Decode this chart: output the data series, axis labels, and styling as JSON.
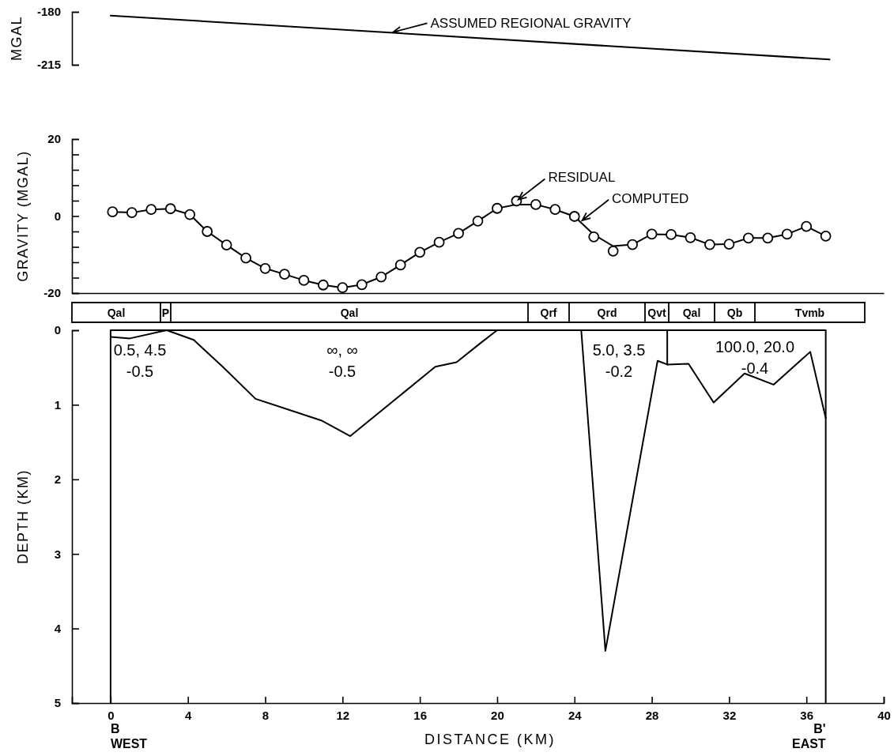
{
  "chart_data": [
    {
      "type": "line",
      "ylabel": "MGAL",
      "xlim": [
        -2,
        40
      ],
      "ylim": [
        -215,
        -180
      ],
      "yticks": [
        -180,
        -215
      ],
      "tick_labels": "y",
      "series": [
        {
          "color": "#000000",
          "x": [
            0,
            37.2
          ],
          "values": [
            -182.5,
            -211.5
          ]
        }
      ],
      "annotations": [
        {
          "text": "ASSUMED REGIONAL GRAVITY",
          "x": 14.5,
          "y": -193.8
        }
      ]
    },
    {
      "type": "line",
      "ylabel": "GRAVITY (MGAL)",
      "xlim": [
        -2,
        40
      ],
      "ylim": [
        -20,
        20
      ],
      "tick_labels": "y",
      "yticks": [
        20,
        {
          "value": 16,
          "label": null
        },
        {
          "value": 12,
          "label": null
        },
        {
          "value": 8,
          "label": null
        },
        {
          "value": 4,
          "label": null
        },
        0,
        {
          "value": -4,
          "label": null
        },
        {
          "value": -8,
          "label": null
        },
        {
          "value": -12,
          "label": null
        },
        {
          "value": -16,
          "label": null
        },
        -20
      ],
      "series": [
        {
          "color": "#000000",
          "x": [
            0.1,
            1.1,
            2.1,
            3.1,
            4.1,
            5,
            6,
            7,
            8,
            9,
            10,
            11,
            12,
            13,
            14,
            15,
            16,
            17,
            18,
            19,
            20,
            21,
            22,
            23,
            24,
            25,
            26,
            27,
            28,
            29,
            30,
            31,
            32,
            33,
            34,
            35,
            36,
            37
          ],
          "values": [
            1.1,
            0.9,
            1.7,
            1.9,
            0.4,
            -4.0,
            -7.5,
            -10.9,
            -13.6,
            -15.1,
            -16.7,
            -17.9,
            -18.6,
            -17.8,
            -15.8,
            -12.7,
            -9.4,
            -6.8,
            -4.5,
            -1.3,
            2.0,
            3.0,
            3.0,
            1.7,
            -0.1,
            -4.8,
            -7.8,
            -7.4,
            -4.7,
            -4.8,
            -5.6,
            -7.4,
            -7.3,
            -5.7,
            -5.7,
            -4.7,
            -2.7,
            -5.2
          ]
        },
        {
          "type": "scatter",
          "marker": "circle",
          "color": "#000000",
          "x": [
            0.1,
            1.1,
            2.1,
            3.1,
            4.1,
            5,
            6,
            7,
            8,
            9,
            10,
            11,
            12,
            13,
            14,
            15,
            16,
            17,
            18,
            19,
            20,
            21,
            22,
            23,
            24,
            25,
            26,
            27,
            28,
            29,
            30,
            31,
            32,
            33,
            34,
            35,
            36,
            37
          ],
          "values": [
            1.1,
            0.9,
            1.7,
            1.9,
            0.4,
            -4.0,
            -7.5,
            -10.9,
            -13.6,
            -15.1,
            -16.7,
            -17.9,
            -18.6,
            -17.8,
            -15.8,
            -12.7,
            -9.4,
            -6.8,
            -4.5,
            -1.3,
            2.0,
            3.9,
            3.0,
            1.7,
            -0.1,
            -5.4,
            -9.1,
            -7.4,
            -4.7,
            -4.8,
            -5.6,
            -7.4,
            -7.3,
            -5.7,
            -5.7,
            -4.7,
            -2.7,
            -5.2
          ]
        }
      ],
      "annotations": [
        {
          "text": "RESIDUAL",
          "x": 21,
          "y": 3.9
        },
        {
          "text": "COMPUTED",
          "x": 24.3,
          "y": -1.5
        }
      ]
    },
    {
      "type": "other",
      "annotations": [
        "Qal",
        "P",
        "Qal",
        "Qrf",
        "Qrd",
        "Qvt",
        "Qal",
        "Qb",
        "Tvmb"
      ]
    },
    {
      "type": "line",
      "xlabel": "DISTANCE (KM)",
      "ylabel": "DEPTH (KM)",
      "xlim": [
        -2,
        40
      ],
      "ylim": [
        5,
        0
      ],
      "xticks": [
        0,
        4,
        8,
        12,
        16,
        20,
        24,
        28,
        32,
        36,
        40
      ],
      "yticks": [
        0,
        1,
        2,
        3,
        4,
        5
      ],
      "series": [
        {
          "color": "#000000",
          "x": [
            0.03,
            1.0,
            2.9,
            4.3,
            5.8,
            7.5,
            10.9,
            12.4,
            16.8,
            17.9,
            19.2,
            20.0,
            24.0,
            24.35,
            25.6,
            28.3,
            28.8,
            29.9,
            31.2,
            32.8,
            34.3,
            36.2,
            37.0
          ],
          "values": [
            0.09,
            0.11,
            0,
            0.13,
            0.49,
            0.92,
            1.21,
            1.42,
            0.49,
            0.43,
            0.16,
            0,
            0,
            0,
            4.3,
            0.41,
            0.46,
            0.45,
            0.97,
            0.58,
            0.73,
            0.29,
            1.18
          ]
        },
        {
          "color": "#000000",
          "x": [
            0,
            37
          ],
          "values": [
            0,
            0
          ]
        },
        {
          "color": "#000000",
          "x": [
            28.8,
            28.8
          ],
          "values": [
            0,
            0.46
          ]
        }
      ],
      "ref_lines": [
        {
          "axis": "x",
          "value": 0,
          "color": "#000000"
        },
        {
          "axis": "x",
          "value": 37,
          "color": "#000000"
        }
      ],
      "annotations": [
        "0.5, 4.5\n-0.5",
        "∞, ∞\n-0.5",
        "5.0, 3.5\n-0.2",
        "100.0, 20.0\n-0.4",
        {
          "text": "B\nWEST",
          "x": 0,
          "y": 5
        },
        {
          "text": "B'\nEAST",
          "x": 37,
          "y": 5
        }
      ]
    }
  ]
}
